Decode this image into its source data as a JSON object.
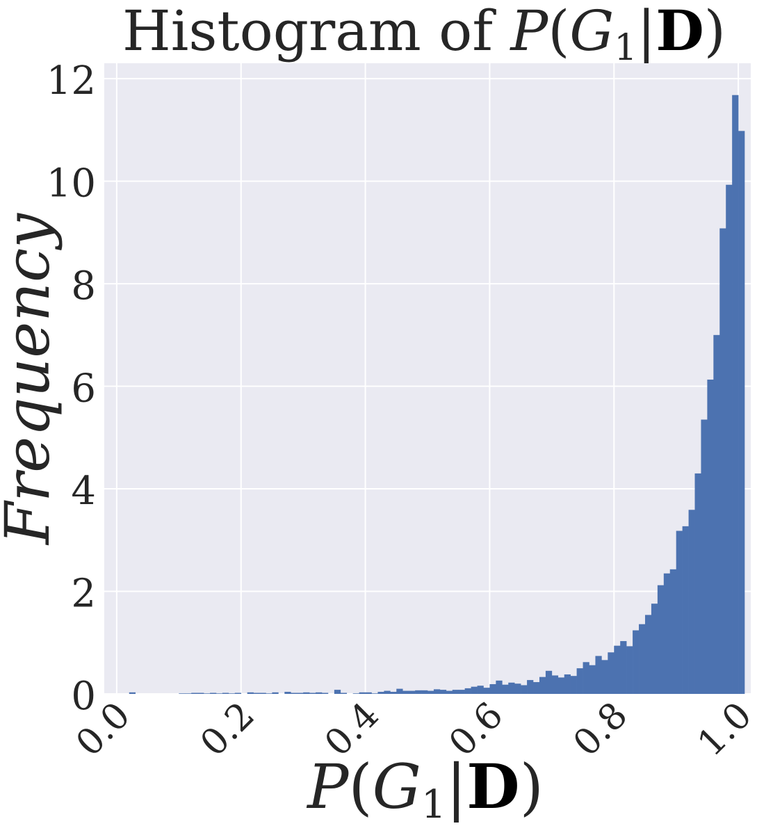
{
  "chart_data": {
    "type": "bar",
    "title": "Histogram of P(G1|D)",
    "title_parts": {
      "prefix": "Histogram of ",
      "P": "P",
      "open": "(",
      "G": "G",
      "sub": "1",
      "bar": "|",
      "D": "D",
      "close": ")"
    },
    "xlabel": "P(G1|D)",
    "ylabel": "Frequency",
    "xlim": [
      -0.02,
      1.02
    ],
    "ylim": [
      0,
      12.3
    ],
    "xticks": [
      0.0,
      0.2,
      0.4,
      0.6,
      0.8,
      1.0
    ],
    "xtick_labels": [
      "0.0",
      "0.2",
      "0.4",
      "0.6",
      "0.8",
      "1.0"
    ],
    "yticks": [
      0,
      2,
      4,
      6,
      8,
      10,
      12
    ],
    "ytick_labels": [
      "0",
      "2",
      "4",
      "6",
      "8",
      "10",
      "12"
    ],
    "bin_width": 0.01,
    "bin_start": 0.0,
    "values": [
      0,
      0,
      0.03,
      0,
      0,
      0,
      0,
      0,
      0,
      0,
      0.01,
      0.01,
      0.02,
      0.02,
      0.01,
      0.02,
      0.01,
      0.02,
      0.01,
      0.02,
      0,
      0.03,
      0.02,
      0.02,
      0.01,
      0.03,
      0,
      0.04,
      0.02,
      0.02,
      0.03,
      0.02,
      0.03,
      0.02,
      0,
      0.08,
      0.02,
      0,
      0.01,
      0.03,
      0.03,
      0.01,
      0.04,
      0.06,
      0.04,
      0.1,
      0.06,
      0.06,
      0.07,
      0.07,
      0.06,
      0.09,
      0.08,
      0.06,
      0.08,
      0.08,
      0.11,
      0.14,
      0.16,
      0.12,
      0.19,
      0.26,
      0.18,
      0.22,
      0.2,
      0.17,
      0.27,
      0.23,
      0.33,
      0.45,
      0.36,
      0.32,
      0.38,
      0.35,
      0.5,
      0.62,
      0.56,
      0.74,
      0.66,
      0.81,
      0.94,
      1.03,
      0.93,
      1.24,
      1.36,
      1.54,
      1.76,
      2.12,
      2.35,
      2.43,
      3.18,
      3.27,
      3.59,
      4.3,
      5.35,
      6.13,
      7.0,
      9.08,
      9.93,
      11.68,
      10.98
    ],
    "bar_color": "#4C72B0",
    "background_color": "#EAEAF2",
    "grid": true,
    "grid_color": "#ffffff"
  }
}
